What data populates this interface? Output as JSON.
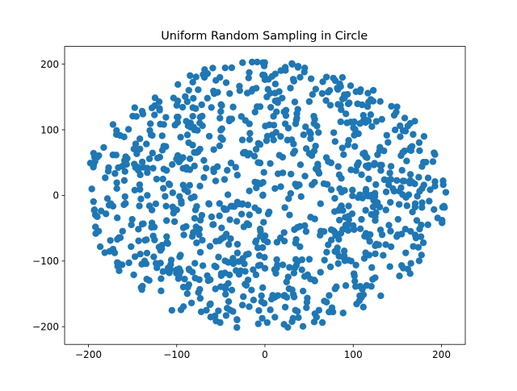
{
  "chart_data": {
    "type": "scatter",
    "title": "Uniform Random Sampling in Circle",
    "xlabel": "",
    "ylabel": "",
    "xlim": [
      -227,
      227
    ],
    "ylim": [
      -227,
      227
    ],
    "xticks": [
      -200,
      -100,
      0,
      100,
      200
    ],
    "yticks": [
      -200,
      -100,
      0,
      100,
      200
    ],
    "xtick_labels": [
      "−200",
      "−100",
      "0",
      "100",
      "200"
    ],
    "ytick_labels": [
      "−200",
      "−100",
      "0",
      "100",
      "200"
    ],
    "grid": false,
    "legend": "none",
    "marker_color": "#1f77b4",
    "sampling": {
      "distribution": "uniform",
      "shape": "circle",
      "center": [
        0,
        0
      ],
      "radius": 205,
      "count": 1000
    }
  }
}
